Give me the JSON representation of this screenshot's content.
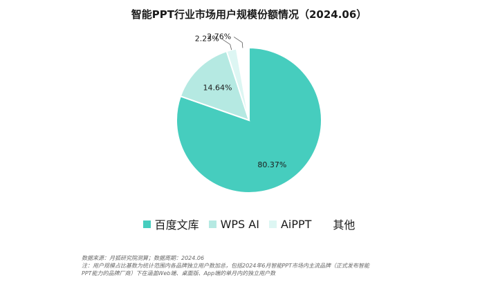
{
  "chart_data": {
    "type": "pie",
    "title": "智能PPT行业市场用户规模份额情况（2024.06）",
    "categories": [
      "百度文库",
      "WPS AI",
      "AiPPT",
      "其他"
    ],
    "values": [
      80.37,
      14.64,
      2.23,
      2.76
    ],
    "value_labels": [
      "80.37%",
      "14.64%",
      "2.23%",
      "2.76%"
    ],
    "colors": [
      "#46CDBE",
      "#B5E9E2",
      "#DDF6F3",
      "#FFFFFF"
    ],
    "legend_position": "bottom",
    "start_angle_deg": 0,
    "direction": "clockwise"
  },
  "footnote": {
    "line1": "数据来源：月狐研究院测算；数据周期：2024.06",
    "line2": "注：用户规模占比基数为统计范围内各品牌独立用户数加总，包括2024年6月智能PPT市场内主流品牌（正式发布智能",
    "line3": "PPT能力的品牌厂商）下在涵盖Web端、桌面版、App端的单月内的独立用户数"
  }
}
